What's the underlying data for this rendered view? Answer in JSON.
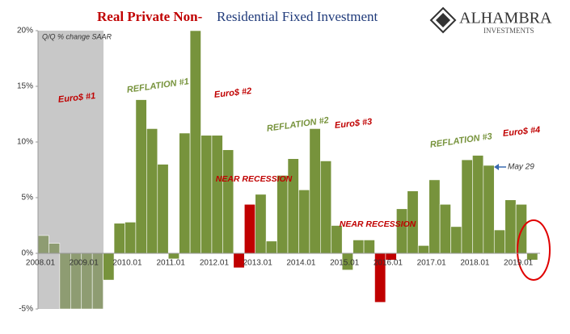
{
  "chart_data": {
    "type": "bar",
    "title_part1": "Real Private Non-",
    "title_part2": "Residential Fixed Investment",
    "logo": "ALHAMBRA",
    "logo_sub": "INVESTMENTS",
    "note": "Q/Q % change SAAR",
    "annotations": [
      "Euro$ #1",
      "REFLATION #1",
      "Euro$ #2",
      "NEAR RECESSION",
      "REFLATION #2",
      "Euro$ #3",
      "NEAR RECESSION",
      "REFLATION #3",
      "Euro$ #4",
      "May 29"
    ],
    "categories": [
      "2008.01",
      null,
      null,
      null,
      "2009.01",
      null,
      null,
      null,
      "2010.01",
      null,
      null,
      null,
      "2011.01",
      null,
      null,
      null,
      "2012.01",
      null,
      null,
      null,
      "2013.01",
      null,
      null,
      null,
      "2014.01",
      null,
      null,
      null,
      "2015.01",
      null,
      null,
      null,
      "2016.01",
      null,
      null,
      null,
      "2017.01",
      null,
      null,
      null,
      "2018.01",
      null,
      null,
      null,
      "2019.01",
      null
    ],
    "values": [
      1.6,
      0.9,
      -5,
      -5,
      -5,
      -5,
      -2.4,
      2.7,
      2.8,
      13.8,
      11.2,
      8.0,
      -0.5,
      10.8,
      20,
      10.6,
      10.6,
      9.3,
      -1.3,
      4.4,
      5.3,
      1.1,
      7.0,
      8.5,
      5.7,
      11.2,
      8.3,
      2.5,
      -1.5,
      1.2,
      1.2,
      -4.4,
      -0.6,
      4.0,
      5.6,
      0.7,
      6.6,
      4.4,
      2.4,
      8.4,
      8.8,
      7.9,
      2.1,
      4.8,
      4.4,
      -0.6
    ],
    "colors": [
      "#8e9c72",
      "#8e9c72",
      "#8e9c72",
      "#8e9c72",
      "#8e9c72",
      "#8e9c72",
      "#77933c",
      "#77933c",
      "#77933c",
      "#77933c",
      "#77933c",
      "#77933c",
      "#77933c",
      "#77933c",
      "#77933c",
      "#77933c",
      "#77933c",
      "#77933c",
      "#c00000",
      "#c00000",
      "#77933c",
      "#77933c",
      "#77933c",
      "#77933c",
      "#77933c",
      "#77933c",
      "#77933c",
      "#77933c",
      "#77933c",
      "#77933c",
      "#77933c",
      "#c00000",
      "#c00000",
      "#77933c",
      "#77933c",
      "#77933c",
      "#77933c",
      "#77933c",
      "#77933c",
      "#77933c",
      "#77933c",
      "#77933c",
      "#77933c",
      "#77933c",
      "#77933c",
      "#77933c"
    ],
    "ylim": [
      -5,
      20
    ],
    "yticks": [
      {
        "value": -5,
        "label": "-5%"
      },
      {
        "value": 0,
        "label": "0%"
      },
      {
        "value": 5,
        "label": "5%"
      },
      {
        "value": 10,
        "label": "10%"
      },
      {
        "value": 15,
        "label": "15%"
      },
      {
        "value": 20,
        "label": "20%"
      }
    ]
  }
}
